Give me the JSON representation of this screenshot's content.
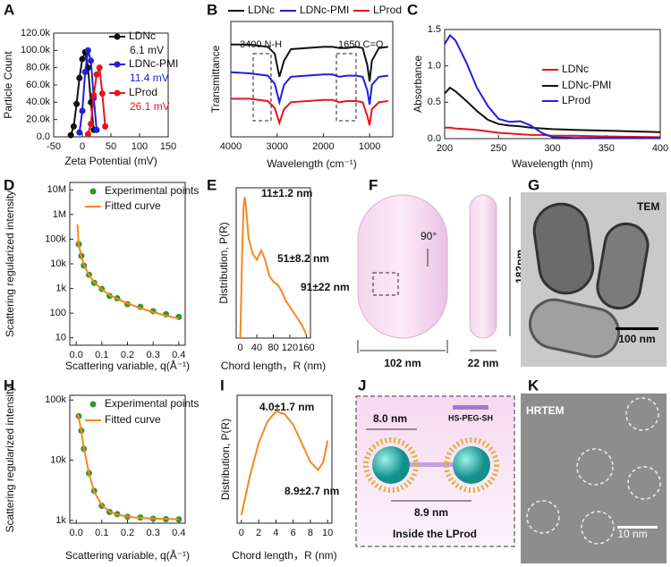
{
  "panels": {
    "labels": [
      "A",
      "B",
      "C",
      "D",
      "E",
      "F",
      "G",
      "H",
      "I",
      "J",
      "K"
    ]
  },
  "chart_data": [
    {
      "type": "line",
      "xlabel": "Zeta Potential (mV)",
      "ylabel": "Particle Count",
      "xlim": [
        -50,
        150
      ],
      "ylim": [
        0,
        120000
      ],
      "xticks": [
        -50,
        0,
        50,
        100,
        150
      ],
      "yticks": [
        {
          "value": 0,
          "label": "0.0"
        },
        {
          "value": 20000,
          "label": "20.0k"
        },
        {
          "value": 40000,
          "label": "40.0k"
        },
        {
          "value": 60000,
          "label": "60.0k"
        },
        {
          "value": 80000,
          "label": "80.0k"
        },
        {
          "value": 100000,
          "label": "100.0k"
        },
        {
          "value": 120000,
          "label": "120.0k"
        }
      ],
      "series": [
        {
          "name": "LDNc",
          "color": "#111111",
          "mode": "lines+markers",
          "x": [
            -20,
            -15,
            -10,
            -5,
            0,
            5,
            10,
            15,
            20
          ],
          "values": [
            2000,
            12000,
            38000,
            68000,
            90000,
            98000,
            80000,
            40000,
            8000
          ]
        },
        {
          "name": "LDNc-PMI",
          "color": "#1f1fdd",
          "mode": "lines+markers",
          "x": [
            -5,
            0,
            5,
            10,
            15,
            20,
            25
          ],
          "values": [
            5000,
            30000,
            75000,
            100000,
            88000,
            45000,
            8000
          ]
        },
        {
          "name": "LProd",
          "color": "#e8141a",
          "mode": "lines+markers",
          "x": [
            10,
            15,
            20,
            25,
            30,
            35,
            40
          ],
          "values": [
            3000,
            15000,
            48000,
            72000,
            80000,
            50000,
            12000
          ]
        }
      ],
      "annotations": [
        "6.1 mV",
        "11.4 mV",
        "26.1 mV"
      ]
    },
    {
      "type": "line",
      "xlabel": "Wavelength (cm⁻¹)",
      "ylabel": "Transmittance",
      "xlim": [
        4000,
        500
      ],
      "ylim": [
        0,
        1
      ],
      "xticks": [
        4000,
        3000,
        2000,
        1000
      ],
      "x": [
        4000,
        3600,
        3400,
        3200,
        3050,
        2950,
        2850,
        2700,
        2000,
        1800,
        1650,
        1500,
        1300,
        1150,
        1050,
        1000,
        950,
        800,
        600
      ],
      "series": [
        {
          "name": "LDNc",
          "color": "#111111",
          "mode": "lines",
          "values": [
            0.8,
            0.8,
            0.79,
            0.78,
            0.72,
            0.52,
            0.66,
            0.76,
            0.78,
            0.78,
            0.77,
            0.77,
            0.78,
            0.77,
            0.62,
            0.48,
            0.66,
            0.77,
            0.78
          ]
        },
        {
          "name": "LDNc-PMI",
          "color": "#1f1fdd",
          "mode": "lines",
          "values": [
            0.56,
            0.55,
            0.54,
            0.53,
            0.46,
            0.3,
            0.45,
            0.52,
            0.54,
            0.54,
            0.52,
            0.53,
            0.53,
            0.52,
            0.4,
            0.28,
            0.45,
            0.52,
            0.53
          ]
        },
        {
          "name": "LProd",
          "color": "#e8141a",
          "mode": "lines",
          "values": [
            0.33,
            0.33,
            0.32,
            0.31,
            0.25,
            0.12,
            0.24,
            0.3,
            0.32,
            0.32,
            0.3,
            0.31,
            0.31,
            0.3,
            0.18,
            0.1,
            0.24,
            0.3,
            0.31
          ]
        }
      ],
      "annotations": [
        "3400 N-H",
        "1650 C=O"
      ]
    },
    {
      "type": "line",
      "xlabel": "Wavelength (nm)",
      "ylabel": "Absorbance",
      "xlim": [
        200,
        400
      ],
      "ylim": [
        0,
        1.5
      ],
      "xticks": [
        200,
        250,
        300,
        350,
        400
      ],
      "yticks": [
        {
          "value": 0,
          "label": "0.0"
        },
        0.5,
        {
          "value": 1,
          "label": "1.0"
        },
        1.5
      ],
      "x": [
        200,
        205,
        210,
        220,
        230,
        240,
        250,
        260,
        270,
        280,
        290,
        300,
        320,
        350,
        400
      ],
      "series": [
        {
          "name": "LDNc",
          "color": "#e8141a",
          "mode": "lines",
          "values": [
            0.15,
            0.15,
            0.14,
            0.13,
            0.12,
            0.1,
            0.08,
            0.07,
            0.06,
            0.05,
            0.05,
            0.04,
            0.04,
            0.03,
            0.02
          ]
        },
        {
          "name": "LDNc-PMI",
          "color": "#111111",
          "mode": "lines",
          "values": [
            0.62,
            0.7,
            0.65,
            0.52,
            0.38,
            0.26,
            0.2,
            0.18,
            0.17,
            0.15,
            0.14,
            0.13,
            0.12,
            0.11,
            0.09
          ]
        },
        {
          "name": "LProd",
          "color": "#1f1fdd",
          "mode": "lines",
          "values": [
            1.3,
            1.42,
            1.35,
            1.05,
            0.7,
            0.45,
            0.27,
            0.23,
            0.24,
            0.18,
            0.08,
            0.02,
            0.01,
            0.01,
            0.01
          ]
        }
      ]
    },
    {
      "type": "line",
      "ylog": true,
      "xlabel": "Scattering variable, q(Å⁻¹)",
      "ylabel": "Scattering regularized intensity",
      "xlim": [
        -0.025,
        0.425
      ],
      "ylim": [
        5,
        20000000
      ],
      "xticks": [
        {
          "value": 0,
          "label": "0.0"
        },
        0.1,
        0.2,
        0.3,
        0.4
      ],
      "yticks": [
        10,
        100,
        {
          "value": 1000,
          "label": "1k"
        },
        {
          "value": 10000,
          "label": "10k"
        },
        {
          "value": 100000,
          "label": "100k"
        },
        {
          "value": 1000000,
          "label": "1M"
        },
        {
          "value": 10000000,
          "label": "10M"
        }
      ],
      "x": [
        0.005,
        0.01,
        0.02,
        0.03,
        0.05,
        0.07,
        0.1,
        0.13,
        0.16,
        0.2,
        0.25,
        0.3,
        0.35,
        0.4
      ],
      "series": [
        {
          "name": "Experimental points",
          "color": "#2e9a2e",
          "mode": "markers",
          "values": [
            null,
            62000,
            21000,
            8500,
            3600,
            1700,
            950,
            500,
            400,
            230,
            180,
            120,
            90,
            70
          ]
        },
        {
          "name": "Fitted curve",
          "color": "#f4891f",
          "mode": "lines",
          "values": [
            400000,
            60000,
            20000,
            9000,
            3500,
            1800,
            900,
            550,
            380,
            250,
            160,
            110,
            80,
            60
          ]
        }
      ]
    },
    {
      "type": "line",
      "xlabel": "Chord length，R (nm)",
      "ylabel": "Distribution, P(R)",
      "xlim": [
        -10,
        170
      ],
      "ylim": [
        0,
        48
      ],
      "xticks": [
        0,
        40,
        80,
        120,
        160
      ],
      "x": [
        0,
        5,
        8,
        11,
        15,
        20,
        30,
        40,
        51,
        60,
        70,
        80,
        91,
        100,
        110,
        120,
        130,
        140,
        150,
        160
      ],
      "series": [
        {
          "color": "#f4891f",
          "mode": "lines",
          "values": [
            0,
            30,
            42,
            45,
            40,
            32,
            27,
            25,
            28,
            25,
            20,
            18,
            17,
            15,
            12,
            10,
            8,
            6,
            4,
            1
          ]
        }
      ],
      "annotations": [
        "11±1.2 nm",
        "51±8.2 nm",
        "91±22 nm"
      ]
    },
    {
      "type": "line",
      "ylog": true,
      "xlabel": "Scattering variable, q(Å⁻¹)",
      "ylabel": "Scattering regularized intensity",
      "xlim": [
        -0.025,
        0.425
      ],
      "ylim": [
        900,
        120000
      ],
      "xticks": [
        {
          "value": 0,
          "label": "0.0"
        },
        0.1,
        0.2,
        0.3,
        0.4
      ],
      "yticks": [
        {
          "value": 1000,
          "label": "1k"
        },
        {
          "value": 10000,
          "label": "10k"
        },
        {
          "value": 100000,
          "label": "100k"
        }
      ],
      "x": [
        0.005,
        0.01,
        0.02,
        0.03,
        0.05,
        0.07,
        0.1,
        0.13,
        0.16,
        0.2,
        0.25,
        0.3,
        0.35,
        0.4
      ],
      "series": [
        {
          "name": "Experimental points",
          "color": "#2e9a2e",
          "mode": "markers",
          "values": [
            null,
            54000,
            31000,
            15500,
            6100,
            3100,
            1750,
            1380,
            1270,
            1150,
            1120,
            1070,
            1050,
            1040
          ]
        },
        {
          "name": "Fitted curve",
          "color": "#f4891f",
          "mode": "lines",
          "values": [
            58000,
            52000,
            30000,
            16000,
            6000,
            3000,
            1800,
            1400,
            1250,
            1150,
            1100,
            1080,
            1060,
            1050
          ]
        }
      ]
    },
    {
      "type": "line",
      "xlabel": "Chord length，R (nm)",
      "ylabel": "Distribution, P(R)",
      "xlim": [
        -0.5,
        10.5
      ],
      "ylim": [
        -3,
        45
      ],
      "xticks": [
        0,
        2,
        4,
        6,
        8,
        10
      ],
      "x": [
        0,
        1,
        2,
        3,
        4,
        5,
        6,
        7,
        8,
        8.9,
        9.5,
        10
      ],
      "series": [
        {
          "color": "#f4891f",
          "mode": "lines",
          "values": [
            0,
            15,
            27,
            35,
            39,
            38,
            34,
            27,
            20,
            17,
            20,
            28
          ]
        }
      ],
      "annotations": [
        "4.0±1.7 nm",
        "8.9±2.7 nm"
      ]
    }
  ],
  "diagrams": {
    "F": {
      "angle": "90°",
      "height": "182nm",
      "width": "102 nm",
      "thickness": "22 nm"
    },
    "G": {
      "label": "TEM",
      "scale": "100 nm"
    },
    "J": {
      "spacing": "8.0 nm",
      "linker": "HS-PEG-SH",
      "distance": "8.9 nm",
      "caption": "Inside the LProd"
    },
    "K": {
      "label": "HRTEM",
      "scale": "10 nm"
    }
  }
}
